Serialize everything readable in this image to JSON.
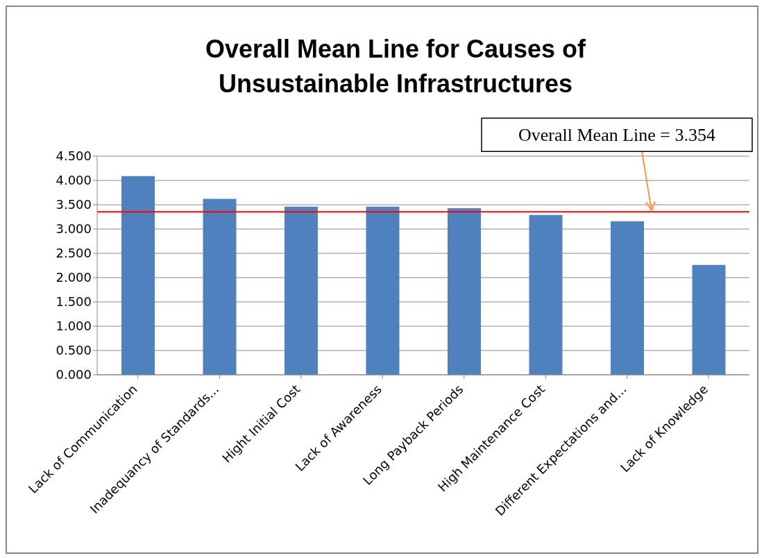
{
  "chart_data": {
    "type": "bar",
    "title": "Overall Mean Line for Causes of Unsustainable Infrastructures",
    "categories": [
      "Lack of Communication",
      "Inadequancy of Standards...",
      "Hight Initial Cost",
      "Lack of Awareness",
      "Long Payback Periods",
      "High Maintenance Cost",
      "Different Expectations and...",
      "Lack of Knowledge"
    ],
    "values": [
      4.09,
      3.62,
      3.46,
      3.46,
      3.43,
      3.29,
      3.16,
      2.26
    ],
    "color": "#4f81bd",
    "ylim": [
      0,
      4.5
    ],
    "yticks": [
      {
        "value": 0,
        "label": "0.000"
      },
      {
        "value": 0.5,
        "label": "0.500"
      },
      {
        "value": 1,
        "label": "1.000"
      },
      {
        "value": 1.5,
        "label": "1.500"
      },
      {
        "value": 2,
        "label": "2.000"
      },
      {
        "value": 2.5,
        "label": "2.500"
      },
      {
        "value": 3,
        "label": "3.000"
      },
      {
        "value": 3.5,
        "label": "3.500"
      },
      {
        "value": 4,
        "label": "4.000"
      },
      {
        "value": 4.5,
        "label": "4.500"
      }
    ],
    "grid": "y",
    "ref_lines": [
      {
        "axis": "y",
        "value": 3.354,
        "label": "Overall Mean Line = 3.354",
        "color": "#ff0000"
      }
    ]
  }
}
